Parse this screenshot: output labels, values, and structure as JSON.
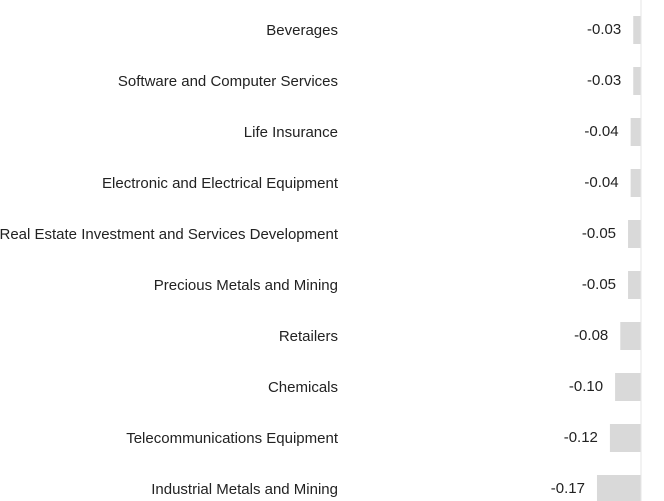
{
  "chart_data": {
    "type": "bar",
    "orientation": "horizontal",
    "categories": [
      "Beverages",
      "Software and Computer Services",
      "Life Insurance",
      "Electronic and Electrical Equipment",
      "Real Estate Investment and Services Development",
      "Precious Metals and Mining",
      "Retailers",
      "Chemicals",
      "Telecommunications Equipment",
      "Industrial Metals and Mining"
    ],
    "values": [
      -0.03,
      -0.03,
      -0.04,
      -0.04,
      -0.05,
      -0.05,
      -0.08,
      -0.1,
      -0.12,
      -0.17
    ],
    "value_labels": [
      "-0.03",
      "-0.03",
      "-0.04",
      "-0.04",
      "-0.05",
      "-0.05",
      "-0.08",
      "-0.10",
      "-0.12",
      "-0.17"
    ],
    "color": "#d9d9d9",
    "xlim": [
      -1.1,
      0
    ]
  }
}
